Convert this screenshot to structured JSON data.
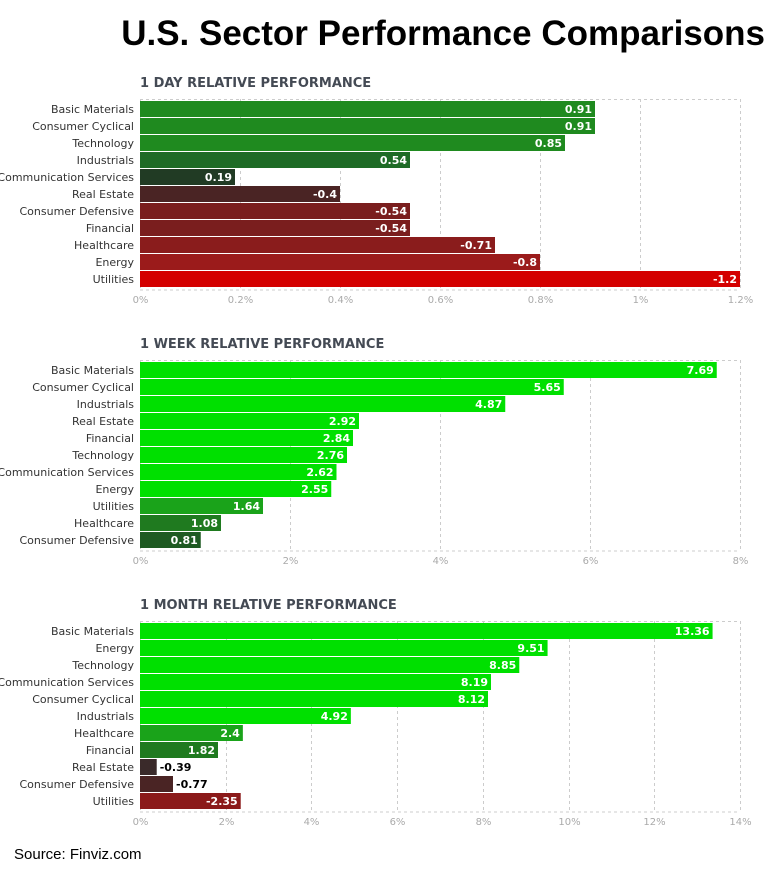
{
  "title": "U.S. Sector Performance Comparisons",
  "source": "Source: Finviz.com",
  "colors": {
    "up_strong": "#00e000",
    "up_mid": "#1aa31a",
    "up_dark": "#1f7a1f",
    "up_darkest": "#213b24",
    "down_light": "#4a2424",
    "down_dark": "#7a1e1e",
    "down_mid": "#9b1b1b",
    "down_strong": "#d40000"
  },
  "chart_data": [
    {
      "type": "bar",
      "orientation": "horizontal",
      "title": "1 DAY RELATIVE PERFORMANCE",
      "categories": [
        "Basic Materials",
        "Consumer Cyclical",
        "Technology",
        "Industrials",
        "Communication Services",
        "Real Estate",
        "Consumer Defensive",
        "Financial",
        "Healthcare",
        "Energy",
        "Utilities"
      ],
      "values": [
        0.91,
        0.91,
        0.85,
        0.54,
        0.19,
        -0.4,
        -0.54,
        -0.54,
        -0.71,
        -0.8,
        -1.2
      ],
      "value_labels": [
        "0.91",
        "0.91",
        "0.85",
        "0.54",
        "0.19",
        "-0.4",
        "-0.54",
        "-0.54",
        "-0.71",
        "-0.8",
        "-1.2"
      ],
      "bar_colors": [
        "#1f8a1f",
        "#1f8a1f",
        "#1f8a1f",
        "#1e6b26",
        "#213b24",
        "#4a2424",
        "#7a1e1e",
        "#7a1e1e",
        "#8a1c1c",
        "#9b1b1b",
        "#d40000"
      ],
      "label_positions": [
        "inside",
        "inside",
        "inside",
        "inside",
        "inside",
        "inside",
        "inside",
        "inside",
        "inside",
        "inside",
        "inside"
      ],
      "xlim": [
        0,
        1.2
      ],
      "ticks": [
        0,
        0.2,
        0.4,
        0.6,
        0.8,
        1,
        1.2
      ],
      "tick_labels": [
        "0%",
        "0.2%",
        "0.4%",
        "0.6%",
        "0.8%",
        "1%",
        "1.2%"
      ],
      "xlabel": "",
      "ylabel": "",
      "grid": true
    },
    {
      "type": "bar",
      "orientation": "horizontal",
      "title": "1 WEEK RELATIVE PERFORMANCE",
      "categories": [
        "Basic Materials",
        "Consumer Cyclical",
        "Industrials",
        "Real Estate",
        "Financial",
        "Technology",
        "Communication Services",
        "Energy",
        "Utilities",
        "Healthcare",
        "Consumer Defensive"
      ],
      "values": [
        7.69,
        5.65,
        4.87,
        2.92,
        2.84,
        2.76,
        2.62,
        2.55,
        1.64,
        1.08,
        0.81
      ],
      "value_labels": [
        "7.69",
        "5.65",
        "4.87",
        "2.92",
        "2.84",
        "2.76",
        "2.62",
        "2.55",
        "1.64",
        "1.08",
        "0.81"
      ],
      "bar_colors": [
        "#00e000",
        "#00e000",
        "#00e000",
        "#00e000",
        "#00e000",
        "#00e000",
        "#00e000",
        "#00e000",
        "#1aa31a",
        "#1f7a1f",
        "#1e5a22"
      ],
      "label_positions": [
        "inside",
        "inside",
        "inside",
        "inside",
        "inside",
        "inside",
        "inside",
        "inside",
        "inside",
        "inside",
        "inside"
      ],
      "xlim": [
        0,
        8
      ],
      "ticks": [
        0,
        2,
        4,
        6,
        8
      ],
      "tick_labels": [
        "0%",
        "2%",
        "4%",
        "6%",
        "8%"
      ],
      "xlabel": "",
      "ylabel": "",
      "grid": true
    },
    {
      "type": "bar",
      "orientation": "horizontal",
      "title": "1 MONTH RELATIVE PERFORMANCE",
      "categories": [
        "Basic Materials",
        "Energy",
        "Technology",
        "Communication Services",
        "Consumer Cyclical",
        "Industrials",
        "Healthcare",
        "Financial",
        "Real Estate",
        "Consumer Defensive",
        "Utilities"
      ],
      "values": [
        13.36,
        9.51,
        8.85,
        8.19,
        8.12,
        4.92,
        2.4,
        1.82,
        -0.39,
        -0.77,
        -2.35
      ],
      "value_labels": [
        "13.36",
        "9.51",
        "8.85",
        "8.19",
        "8.12",
        "4.92",
        "2.4",
        "1.82",
        "-0.39",
        "-0.77",
        "-2.35"
      ],
      "bar_colors": [
        "#00e000",
        "#00e000",
        "#00e000",
        "#00e000",
        "#00e000",
        "#00e000",
        "#1aa31a",
        "#1f7a1f",
        "#3a2a2a",
        "#4a2424",
        "#8b1a1a"
      ],
      "label_positions": [
        "inside",
        "inside",
        "inside",
        "inside",
        "inside",
        "inside",
        "inside",
        "inside",
        "outside",
        "outside",
        "inside"
      ],
      "xlim": [
        0,
        14
      ],
      "ticks": [
        0,
        2,
        4,
        6,
        8,
        10,
        12,
        14
      ],
      "tick_labels": [
        "0%",
        "2%",
        "4%",
        "6%",
        "8%",
        "10%",
        "12%",
        "14%"
      ],
      "xlabel": "",
      "ylabel": "",
      "grid": true
    }
  ]
}
